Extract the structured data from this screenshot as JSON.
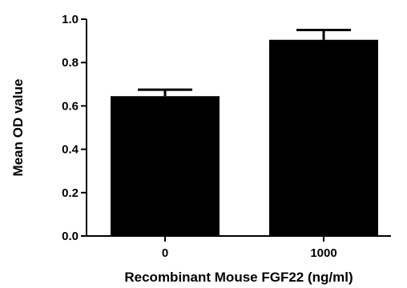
{
  "chart_data": {
    "type": "bar",
    "title": "",
    "xlabel": "Recombinant Mouse FGF22 (ng/ml)",
    "ylabel": "Mean OD value",
    "categories": [
      "0",
      "1000"
    ],
    "values": [
      0.645,
      0.905
    ],
    "errors": [
      0.03,
      0.045
    ],
    "ylim": [
      0,
      1.0
    ],
    "yticks": [
      0,
      0.2,
      0.4,
      0.6,
      0.8,
      1.0
    ],
    "ytick_labels": [
      "0.0",
      "0.2",
      "0.4",
      "0.6",
      "0.8",
      "1.0"
    ],
    "grid": false,
    "legend": "none",
    "bar_color": "#000000"
  }
}
